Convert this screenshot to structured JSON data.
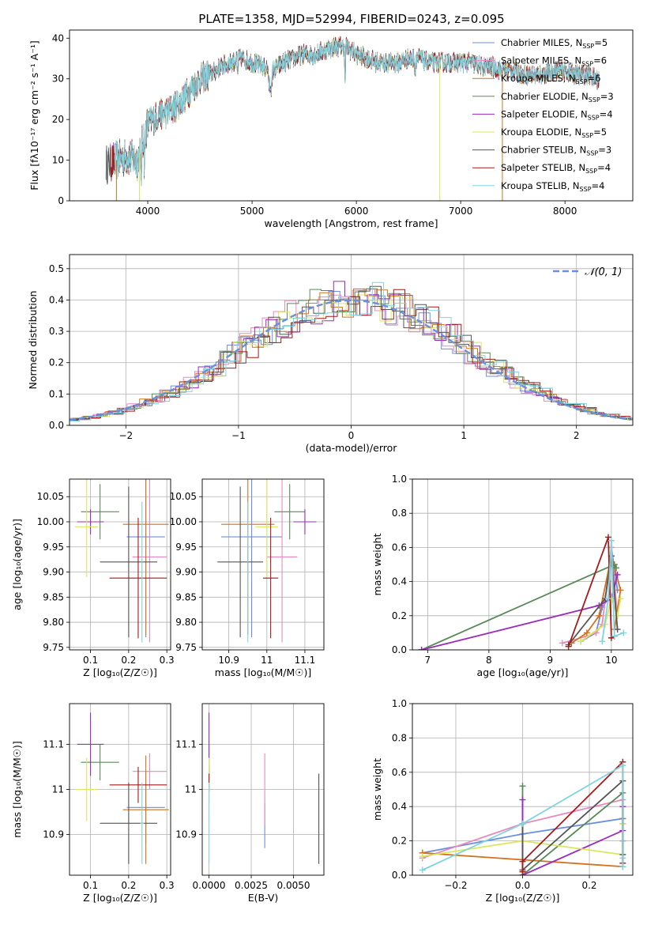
{
  "figure": {
    "title": "PLATE=1358, MJD=52994, FIBERID=0243, z=0.095"
  },
  "colors": {
    "Chabrier MILES": "#6a8fdd",
    "Salpeter MILES": "#e88abf",
    "Kroupa MILES": "#d2721e",
    "Chabrier ELODIE": "#5a8a5a",
    "Salpeter ELODIE": "#9b2bbd",
    "Kroupa ELODIE": "#d9e85a",
    "Chabrier STELIB": "#555555",
    "Salpeter STELIB": "#a51a1a",
    "Kroupa STELIB": "#7fd4e0",
    "normal": "#6a8fdd"
  },
  "chart_data": [
    {
      "id": "spectrum",
      "type": "line",
      "title": "PLATE=1358, MJD=52994, FIBERID=0243, z=0.095",
      "xlabel": "wavelength [Angstrom, rest frame]",
      "ylabel": "Flux [fλ10⁻¹⁷ erg cm⁻² s⁻¹ A⁻¹]",
      "xlim": [
        3250,
        8650
      ],
      "ylim": [
        0,
        42
      ],
      "xticks": [
        4000,
        5000,
        6000,
        7000,
        8000
      ],
      "yticks": [
        0,
        10,
        20,
        30,
        40
      ],
      "grid": false,
      "legend_position": "top-right",
      "legend": [
        {
          "base": "Chabrier MILES, N",
          "sub": "SSP",
          "tail": "=5"
        },
        {
          "base": "Salpeter MILES, N",
          "sub": "SSP",
          "tail": "=6"
        },
        {
          "base": "Kroupa MILES, N",
          "sub": "SSP",
          "tail": "=6"
        },
        {
          "base": "Chabrier ELODIE, N",
          "sub": "SSP",
          "tail": "=3"
        },
        {
          "base": "Salpeter ELODIE, N",
          "sub": "SSP",
          "tail": "=4"
        },
        {
          "base": "Kroupa ELODIE, N",
          "sub": "SSP",
          "tail": "=5"
        },
        {
          "base": "Chabrier STELIB, N",
          "sub": "SSP",
          "tail": "=3"
        },
        {
          "base": "Salpeter STELIB, N",
          "sub": "SSP",
          "tail": "=4"
        },
        {
          "base": "Kroupa STELIB, N",
          "sub": "SSP",
          "tail": "=4"
        }
      ],
      "continuum": {
        "x": [
          3600,
          3700,
          3800,
          3900,
          4000,
          4100,
          4200,
          4300,
          4400,
          4500,
          4600,
          4700,
          4800,
          4900,
          5000,
          5100,
          5200,
          5300,
          5400,
          5500,
          5600,
          5700,
          5800,
          5900,
          6000,
          6100,
          6200,
          6300,
          6400,
          6500,
          6600,
          6700,
          6800,
          6900,
          7000,
          7100,
          7200,
          7300,
          7400,
          7500,
          7600,
          7700,
          7800,
          7900,
          8000,
          8100,
          8200,
          8300
        ],
        "y": [
          9,
          10,
          11,
          10,
          19,
          21,
          22,
          24,
          27,
          30,
          31,
          33,
          34,
          35,
          34,
          33,
          32,
          34,
          35,
          36,
          36,
          37,
          38,
          38,
          36,
          35,
          34,
          34,
          34,
          35,
          35,
          34,
          34,
          34,
          34,
          34,
          33,
          33,
          32,
          32,
          31,
          31,
          31,
          32,
          32,
          31,
          31,
          30
        ]
      },
      "dropouts": [
        {
          "series": "Kroupa MILES",
          "x": 3700
        },
        {
          "series": "Kroupa MILES",
          "x": 7400
        },
        {
          "series": "Kroupa ELODIE",
          "x": 3920
        },
        {
          "series": "Kroupa ELODIE",
          "x": 6800
        }
      ]
    },
    {
      "id": "residuals",
      "type": "histogram",
      "xlabel": "(data-model)/error",
      "ylabel": "Normed distribution",
      "xlim": [
        -2.5,
        2.5
      ],
      "ylim": [
        0,
        0.545
      ],
      "xticks": [
        -2,
        -1,
        0,
        1,
        2
      ],
      "yticks": [
        0.0,
        0.1,
        0.2,
        0.3,
        0.4,
        0.5
      ],
      "grid": true,
      "legend_position": "top-right",
      "legend": [
        {
          "label": "𝒩(0, 1)",
          "series": "normal"
        }
      ],
      "bin_width": 0.1
    },
    {
      "id": "age-vs-Z",
      "type": "errorbar",
      "xlabel": "Z [log₁₀(Z/Z☉)]",
      "ylabel": "age  [log₁₀(age/yr)]",
      "xlim": [
        0.045,
        0.31
      ],
      "ylim": [
        9.745,
        10.085
      ],
      "xticks": [
        0.1,
        0.2,
        0.3
      ],
      "yticks": [
        9.75,
        9.8,
        9.85,
        9.9,
        9.95,
        10.0,
        10.05
      ],
      "ytick_labels": [
        "9.75",
        "9.80",
        "9.85",
        "9.90",
        "9.95",
        "10.00",
        "10.05"
      ],
      "grid": true,
      "points": [
        {
          "series": "Chabrier MILES",
          "x": 0.245,
          "xerr": 0.05,
          "y": 9.97,
          "yerr": 0.2
        },
        {
          "series": "Salpeter MILES",
          "x": 0.255,
          "xerr": 0.045,
          "y": 9.93,
          "yerr": 0.17
        },
        {
          "series": "Kroupa MILES",
          "x": 0.245,
          "xerr": 0.06,
          "y": 9.995,
          "yerr": 0.22
        },
        {
          "series": "Chabrier ELODIE",
          "x": 0.125,
          "xerr": 0.05,
          "y": 10.02,
          "yerr": 0.055
        },
        {
          "series": "Salpeter ELODIE",
          "x": 0.1,
          "xerr": 0.035,
          "y": 10.0,
          "yerr": 0.025
        },
        {
          "series": "Kroupa ELODIE",
          "x": 0.09,
          "xerr": 0.03,
          "y": 9.99,
          "yerr": 0.1
        },
        {
          "series": "Chabrier STELIB",
          "x": 0.2,
          "xerr": 0.075,
          "y": 9.92,
          "yerr": 0.15
        },
        {
          "series": "Salpeter STELIB",
          "x": 0.225,
          "xerr": 0.075,
          "y": 9.888,
          "yerr": 0.12
        },
        {
          "series": "Kroupa STELIB",
          "x": 0.235,
          "xerr": 0.005,
          "y": 9.9,
          "yerr": 0.14
        }
      ]
    },
    {
      "id": "age-vs-mass",
      "type": "errorbar",
      "xlabel": "mass [log₁₀(M/M☉)]",
      "ylabel": "",
      "xlim": [
        10.83,
        11.15
      ],
      "ylim": [
        9.745,
        10.085
      ],
      "xticks": [
        10.9,
        11.0,
        11.1
      ],
      "yticks": [
        9.75,
        9.8,
        9.85,
        9.9,
        9.95,
        10.0,
        10.05
      ],
      "ytick_labels": [
        "9.75",
        "9.80",
        "9.85",
        "9.90",
        "9.95",
        "10.00",
        "10.05"
      ],
      "grid": true,
      "points": [
        {
          "series": "Chabrier MILES",
          "x": 10.96,
          "xerr": 0.08,
          "y": 9.97,
          "yerr": 0.2
        },
        {
          "series": "Salpeter MILES",
          "x": 11.04,
          "xerr": 0.04,
          "y": 9.93,
          "yerr": 0.17
        },
        {
          "series": "Kroupa MILES",
          "x": 10.95,
          "xerr": 0.07,
          "y": 9.995,
          "yerr": 0.22
        },
        {
          "series": "Chabrier ELODIE",
          "x": 11.06,
          "xerr": 0.04,
          "y": 10.02,
          "yerr": 0.055
        },
        {
          "series": "Salpeter ELODIE",
          "x": 11.1,
          "xerr": 0.03,
          "y": 10.0,
          "yerr": 0.025
        },
        {
          "series": "Kroupa ELODIE",
          "x": 11.0,
          "xerr": 0.03,
          "y": 9.99,
          "yerr": 0.1
        },
        {
          "series": "Chabrier STELIB",
          "x": 10.93,
          "xerr": 0.06,
          "y": 9.92,
          "yerr": 0.15
        },
        {
          "series": "Salpeter STELIB",
          "x": 11.01,
          "xerr": 0.02,
          "y": 9.888,
          "yerr": 0.12
        },
        {
          "series": "Kroupa STELIB",
          "x": 10.95,
          "xerr": 0.005,
          "y": 9.9,
          "yerr": 0.14
        }
      ]
    },
    {
      "id": "weight-vs-age",
      "type": "line",
      "xlabel": "age  [log₁₀(age/yr)]",
      "ylabel": "mass weight",
      "xlim": [
        6.75,
        10.35
      ],
      "ylim": [
        0,
        1
      ],
      "xticks": [
        7,
        8,
        9,
        10
      ],
      "yticks": [
        0.0,
        0.2,
        0.4,
        0.6,
        0.8,
        1.0
      ],
      "grid": true,
      "series": [
        {
          "series": "Chabrier MILES",
          "x": [
            9.5,
            9.75,
            9.85,
            9.95,
            10.0,
            10.1
          ],
          "y": [
            0.05,
            0.1,
            0.25,
            0.3,
            0.6,
            0.35
          ]
        },
        {
          "series": "Salpeter MILES",
          "x": [
            9.2,
            9.6,
            9.75,
            9.85,
            10.0,
            10.1
          ],
          "y": [
            0.04,
            0.08,
            0.1,
            0.15,
            0.6,
            0.2
          ]
        },
        {
          "series": "Kroupa MILES",
          "x": [
            9.35,
            9.6,
            9.8,
            10.0,
            10.15,
            10.05
          ],
          "y": [
            0.04,
            0.1,
            0.2,
            0.55,
            0.35,
            0.12
          ]
        },
        {
          "series": "Chabrier ELODIE",
          "x": [
            6.9,
            10.05,
            10.08
          ],
          "y": [
            0.0,
            0.5,
            0.48
          ]
        },
        {
          "series": "Salpeter ELODIE",
          "x": [
            6.9,
            9.8,
            10.0,
            10.1
          ],
          "y": [
            0.0,
            0.26,
            0.3,
            0.44
          ]
        },
        {
          "series": "Kroupa ELODIE",
          "x": [
            9.5,
            9.9,
            10.0,
            10.1,
            10.15
          ],
          "y": [
            0.05,
            0.15,
            0.3,
            0.2,
            0.3
          ]
        },
        {
          "series": "Chabrier STELIB",
          "x": [
            9.3,
            9.9,
            10.0,
            10.1
          ],
          "y": [
            0.03,
            0.3,
            0.55,
            0.12
          ]
        },
        {
          "series": "Salpeter STELIB",
          "x": [
            9.3,
            9.95,
            10.0,
            10.05
          ],
          "y": [
            0.02,
            0.66,
            0.07,
            0.08
          ]
        },
        {
          "series": "Kroupa STELIB",
          "x": [
            9.85,
            9.95,
            10.0,
            10.05,
            10.2
          ],
          "y": [
            0.05,
            0.3,
            0.64,
            0.08,
            0.1
          ]
        }
      ]
    },
    {
      "id": "mass-vs-Z",
      "type": "errorbar",
      "xlabel": "Z [log₁₀(Z/Z☉)]",
      "ylabel": "mass [log₁₀(M/M☉)]",
      "xlim": [
        0.045,
        0.31
      ],
      "ylim": [
        10.81,
        11.19
      ],
      "xticks": [
        0.1,
        0.2,
        0.3
      ],
      "yticks": [
        10.9,
        11.0,
        11.1
      ],
      "grid": true,
      "points": [
        {
          "series": "Chabrier MILES",
          "x": 0.245,
          "xerr": 0.05,
          "y": 10.96,
          "yerr": 0.08
        },
        {
          "series": "Salpeter MILES",
          "x": 0.255,
          "xerr": 0.045,
          "y": 11.04,
          "yerr": 0.04
        },
        {
          "series": "Kroupa MILES",
          "x": 0.245,
          "xerr": 0.06,
          "y": 10.955,
          "yerr": 0.12
        },
        {
          "series": "Chabrier ELODIE",
          "x": 0.125,
          "xerr": 0.05,
          "y": 11.06,
          "yerr": 0.04
        },
        {
          "series": "Salpeter ELODIE",
          "x": 0.1,
          "xerr": 0.035,
          "y": 11.1,
          "yerr": 0.07
        },
        {
          "series": "Kroupa ELODIE",
          "x": 0.09,
          "xerr": 0.03,
          "y": 11.0,
          "yerr": 0.07
        },
        {
          "series": "Chabrier STELIB",
          "x": 0.2,
          "xerr": 0.075,
          "y": 10.925,
          "yerr": 0.09
        },
        {
          "series": "Salpeter STELIB",
          "x": 0.225,
          "xerr": 0.075,
          "y": 11.01,
          "yerr": 0.04
        },
        {
          "series": "Kroupa STELIB",
          "x": 0.235,
          "xerr": 0.005,
          "y": 10.925,
          "yerr": 0.09
        }
      ]
    },
    {
      "id": "mass-vs-EBV",
      "type": "errorbar",
      "xlabel": "E(B-V)",
      "ylabel": "",
      "xlim": [
        -0.0004,
        0.0068
      ],
      "ylim": [
        10.81,
        11.19
      ],
      "xticks": [
        0.0,
        0.0025,
        0.005
      ],
      "xtick_labels": [
        "0.0000",
        "0.0025",
        "0.0050"
      ],
      "yticks": [
        10.9,
        11.0,
        11.1
      ],
      "grid": true,
      "points": [
        {
          "series": "Chabrier MILES",
          "x": 0.0033,
          "xerr": 0,
          "y": 10.92,
          "yerr": 0.05
        },
        {
          "series": "Salpeter MILES",
          "x": 0.0033,
          "xerr": 0,
          "y": 11.0,
          "yerr": 0.08
        },
        {
          "series": "Kroupa MILES",
          "x": 0.0,
          "xerr": 0,
          "y": 11.01,
          "yerr": 0.04
        },
        {
          "series": "Chabrier ELODIE",
          "x": 0.0,
          "xerr": 0,
          "y": 11.06,
          "yerr": 0.04
        },
        {
          "series": "Salpeter ELODIE",
          "x": 0.0,
          "xerr": 0,
          "y": 11.1,
          "yerr": 0.07
        },
        {
          "series": "Kroupa ELODIE",
          "x": 0.0,
          "xerr": 0,
          "y": 11.0,
          "yerr": 0.07
        },
        {
          "series": "Chabrier STELIB",
          "x": 0.0065,
          "xerr": 0,
          "y": 10.935,
          "yerr": 0.1
        },
        {
          "series": "Salpeter STELIB",
          "x": 0.0,
          "xerr": 0,
          "y": 11.015,
          "yerr": 0.02
        },
        {
          "series": "Kroupa STELIB",
          "x": 0.0,
          "xerr": 0,
          "y": 10.925,
          "yerr": 0.09
        }
      ]
    },
    {
      "id": "weight-vs-Z",
      "type": "line",
      "xlabel": "Z [log₁₀(Z/Z☉)]",
      "ylabel": "mass weight",
      "xlim": [
        -0.33,
        0.33
      ],
      "ylim": [
        0,
        1
      ],
      "xticks": [
        -0.2,
        0.0,
        0.2
      ],
      "xtick_labels": [
        "−0.2",
        "0.0",
        "0.2"
      ],
      "yticks": [
        0.0,
        0.2,
        0.4,
        0.6,
        0.8,
        1.0
      ],
      "grid": true,
      "series": [
        {
          "series": "Chabrier MILES",
          "x": [
            -0.3,
            0.0,
            0.3,
            0.3
          ],
          "y": [
            0.13,
            0.24,
            0.33,
            0.2
          ]
        },
        {
          "series": "Salpeter MILES",
          "x": [
            -0.3,
            0.0,
            0.3,
            0.3,
            0.3
          ],
          "y": [
            0.1,
            0.3,
            0.44,
            0.2,
            0.05
          ]
        },
        {
          "series": "Kroupa MILES",
          "x": [
            -0.3,
            0.0,
            0.3,
            0.3
          ],
          "y": [
            0.13,
            0.09,
            0.05,
            0.33
          ]
        },
        {
          "series": "Chabrier ELODIE",
          "x": [
            0.0,
            0.0,
            0.3,
            0.3
          ],
          "y": [
            0.52,
            0.0,
            0.48,
            0.3
          ]
        },
        {
          "series": "Salpeter ELODIE",
          "x": [
            0.0,
            0.0,
            0.3,
            0.3
          ],
          "y": [
            0.44,
            0.0,
            0.26,
            0.4
          ]
        },
        {
          "series": "Kroupa ELODIE",
          "x": [
            -0.3,
            0.0,
            0.3,
            0.3
          ],
          "y": [
            0.11,
            0.2,
            0.12,
            0.3
          ]
        },
        {
          "series": "Chabrier STELIB",
          "x": [
            0.0,
            0.0,
            0.3,
            0.3
          ],
          "y": [
            0.3,
            0.03,
            0.55,
            0.12
          ]
        },
        {
          "series": "Salpeter STELIB",
          "x": [
            0.0,
            0.0,
            0.3,
            0.3
          ],
          "y": [
            0.02,
            0.08,
            0.66,
            0.07
          ]
        },
        {
          "series": "Kroupa STELIB",
          "x": [
            -0.3,
            0.0,
            0.3,
            0.3,
            0.3
          ],
          "y": [
            0.03,
            0.3,
            0.64,
            0.1,
            0.05
          ]
        }
      ]
    }
  ]
}
